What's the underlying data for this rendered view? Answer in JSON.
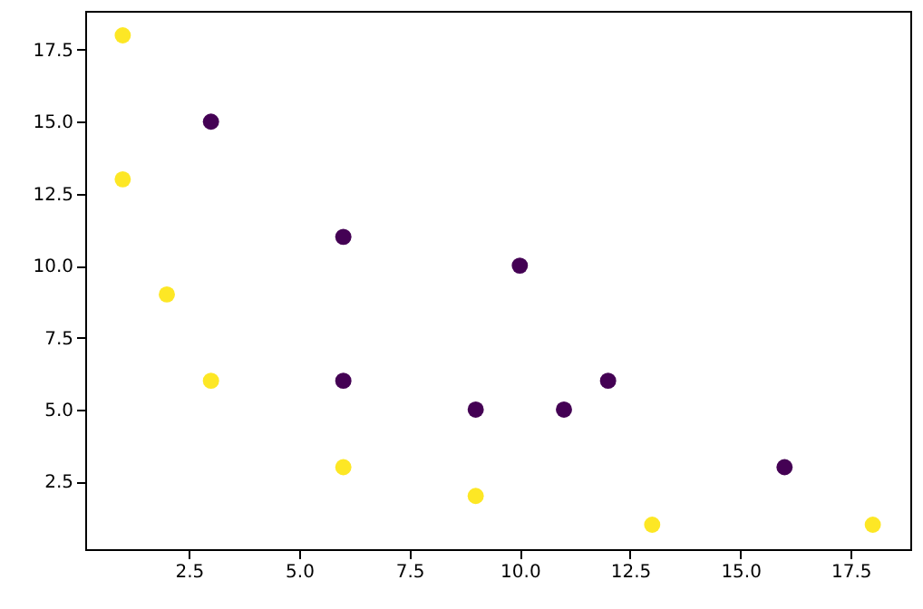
{
  "chart_data": {
    "type": "scatter",
    "marker": "circle",
    "grid": false,
    "xlim": [
      0.15,
      18.85
    ],
    "ylim": [
      0.15,
      18.85
    ],
    "xticks": [
      {
        "value": 2.5,
        "label": "2.5"
      },
      {
        "value": 5,
        "label": "5.0"
      },
      {
        "value": 7.5,
        "label": "7.5"
      },
      {
        "value": 10,
        "label": "10.0"
      },
      {
        "value": 12.5,
        "label": "12.5"
      },
      {
        "value": 15,
        "label": "15.0"
      },
      {
        "value": 17.5,
        "label": "17.5"
      }
    ],
    "yticks": [
      {
        "value": 2.5,
        "label": "2.5"
      },
      {
        "value": 5,
        "label": "5.0"
      },
      {
        "value": 7.5,
        "label": "7.5"
      },
      {
        "value": 10,
        "label": "10.0"
      },
      {
        "value": 12.5,
        "label": "12.5"
      },
      {
        "value": 15,
        "label": "15.0"
      },
      {
        "value": 17.5,
        "label": "17.5"
      }
    ],
    "series": [
      {
        "color": "#fde725",
        "x": [
          1,
          1,
          2,
          3,
          6,
          9,
          13,
          18
        ],
        "values": [
          18,
          13,
          9,
          6,
          3,
          2,
          1,
          1
        ]
      },
      {
        "color": "#440154",
        "x": [
          3,
          6,
          10,
          6,
          9,
          11,
          12,
          16
        ],
        "values": [
          15,
          11,
          10,
          6,
          5,
          5,
          6,
          3
        ]
      }
    ]
  }
}
